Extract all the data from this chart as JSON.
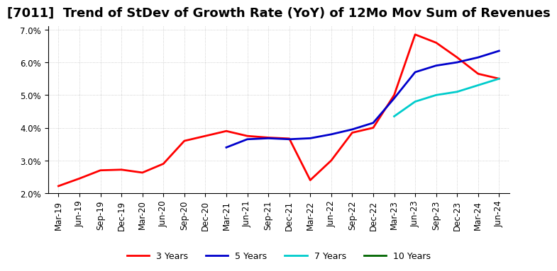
{
  "title": "[7011]  Trend of StDev of Growth Rate (YoY) of 12Mo Mov Sum of Revenues",
  "ylim": [
    0.02,
    0.071
  ],
  "yticks": [
    0.02,
    0.03,
    0.04,
    0.05,
    0.06,
    0.07
  ],
  "background_color": "#ffffff",
  "plot_bg_color": "#ffffff",
  "grid_color": "#aaaaaa",
  "series": {
    "3 Years": {
      "color": "#ff0000",
      "dates": [
        "Mar-19",
        "Jun-19",
        "Sep-19",
        "Dec-19",
        "Mar-20",
        "Jun-20",
        "Sep-20",
        "Dec-20",
        "Mar-21",
        "Jun-21",
        "Sep-21",
        "Dec-21",
        "Mar-22",
        "Jun-22",
        "Sep-22",
        "Dec-22",
        "Mar-23",
        "Jun-23",
        "Sep-23",
        "Dec-23",
        "Mar-24",
        "Jun-24"
      ],
      "values": [
        0.0222,
        0.0245,
        0.027,
        0.0272,
        0.0263,
        0.029,
        0.036,
        0.0375,
        0.039,
        0.0375,
        0.037,
        0.0367,
        0.024,
        0.03,
        0.0385,
        0.04,
        0.05,
        0.0685,
        0.066,
        0.0615,
        0.0565,
        0.055
      ]
    },
    "5 Years": {
      "color": "#0000cc",
      "dates": [
        "Mar-21",
        "Jun-21",
        "Sep-21",
        "Dec-21",
        "Mar-22",
        "Jun-22",
        "Sep-22",
        "Dec-22",
        "Mar-23",
        "Jun-23",
        "Sep-23",
        "Dec-23",
        "Mar-24",
        "Jun-24"
      ],
      "values": [
        0.034,
        0.0365,
        0.0368,
        0.0365,
        0.0368,
        0.038,
        0.0395,
        0.0415,
        0.049,
        0.057,
        0.059,
        0.06,
        0.0615,
        0.0635
      ]
    },
    "7 Years": {
      "color": "#00cccc",
      "dates": [
        "Mar-23",
        "Jun-23",
        "Sep-23",
        "Dec-23",
        "Mar-24",
        "Jun-24"
      ],
      "values": [
        0.0435,
        0.048,
        0.05,
        0.051,
        0.053,
        0.055
      ]
    },
    "10 Years": {
      "color": "#006600",
      "dates": [],
      "values": []
    }
  },
  "legend_entries": [
    "3 Years",
    "5 Years",
    "7 Years",
    "10 Years"
  ],
  "legend_colors": [
    "#ff0000",
    "#0000cc",
    "#00cccc",
    "#006600"
  ],
  "xtick_labels": [
    "Mar-19",
    "Jun-19",
    "Sep-19",
    "Dec-19",
    "Mar-20",
    "Jun-20",
    "Sep-20",
    "Dec-20",
    "Mar-21",
    "Jun-21",
    "Sep-21",
    "Dec-21",
    "Mar-22",
    "Jun-22",
    "Sep-22",
    "Dec-22",
    "Mar-23",
    "Jun-23",
    "Sep-23",
    "Dec-23",
    "Mar-24",
    "Jun-24"
  ],
  "title_fontsize": 13,
  "tick_fontsize": 8.5,
  "legend_fontsize": 9
}
